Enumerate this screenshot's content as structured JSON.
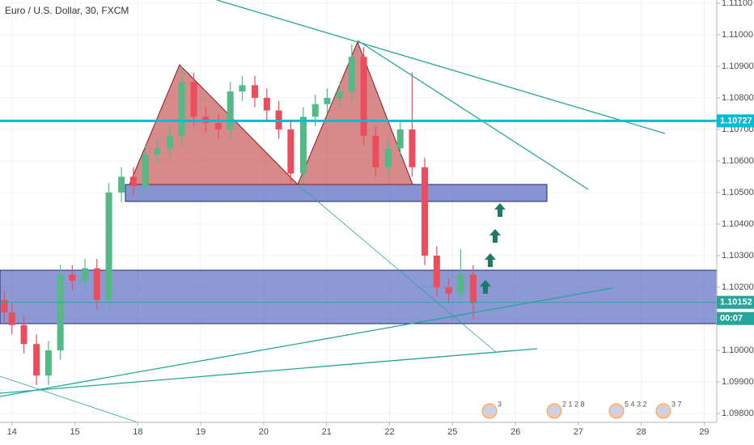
{
  "chart_data": {
    "type": "candlestick",
    "title": "Euro / U.S. Dollar, 30, FXCM",
    "x": [
      -0.12,
      0,
      0.19,
      0.39,
      0.58,
      0.77,
      0.96,
      1.16,
      1.35,
      1.54,
      1.74,
      1.93,
      2.12,
      2.31,
      2.51,
      2.7,
      2.89,
      3.08,
      3.28,
      3.47,
      3.66,
      3.86,
      4.05,
      4.24,
      4.43,
      4.63,
      4.82,
      5.01,
      5.21,
      5.4,
      5.59,
      5.78,
      5.98,
      6.17,
      6.36,
      6.56,
      6.75,
      6.94,
      7.13,
      7.33
    ],
    "open": [
      1.1016,
      1.1012,
      1.1008,
      1.1002,
      1.0992,
      1.1,
      1.1024,
      1.1022,
      1.1026,
      1.1016,
      1.105,
      1.1055,
      1.1052,
      1.1062,
      1.1064,
      1.1068,
      1.1085,
      1.1074,
      1.1072,
      1.107,
      1.1082,
      1.1084,
      1.108,
      1.1076,
      1.107,
      1.1056,
      1.1074,
      1.1078,
      1.108,
      1.1082,
      1.1093,
      1.1068,
      1.1058,
      1.1064,
      1.107,
      1.1058,
      1.103,
      1.102,
      1.1018,
      1.1024
    ],
    "high": [
      1.1019,
      1.1015,
      1.1011,
      1.1005,
      1.1003,
      1.1027,
      1.1027,
      1.1029,
      1.1029,
      1.1053,
      1.1058,
      1.1058,
      1.1065,
      1.1067,
      1.1071,
      1.109,
      1.1088,
      1.1077,
      1.1075,
      1.1085,
      1.1087,
      1.1087,
      1.1083,
      1.1079,
      1.1073,
      1.1077,
      1.1081,
      1.1083,
      1.1085,
      1.1097,
      1.1096,
      1.1071,
      1.1067,
      1.1073,
      1.1088,
      1.1061,
      1.1033,
      1.1023,
      1.1032,
      1.1027
    ],
    "low": [
      1.1009,
      1.1005,
      1.0999,
      1.0989,
      1.0989,
      1.0997,
      1.1019,
      1.1019,
      1.1013,
      1.1013,
      1.1047,
      1.1049,
      1.1049,
      1.1059,
      1.1061,
      1.1065,
      1.1071,
      1.1069,
      1.1067,
      1.1067,
      1.1079,
      1.1077,
      1.1073,
      1.1067,
      1.1053,
      1.1053,
      1.1071,
      1.1075,
      1.1077,
      1.1079,
      1.1065,
      1.1055,
      1.1055,
      1.1061,
      1.1055,
      1.1027,
      1.1017,
      1.1015,
      1.1015,
      1.101
    ],
    "close": [
      1.1012,
      1.1008,
      1.1002,
      1.0992,
      1.1,
      1.1024,
      1.1022,
      1.1026,
      1.1016,
      1.105,
      1.1055,
      1.1052,
      1.1062,
      1.1064,
      1.1068,
      1.1085,
      1.1074,
      1.1072,
      1.107,
      1.1082,
      1.1084,
      1.108,
      1.1076,
      1.107,
      1.1056,
      1.1074,
      1.1078,
      1.108,
      1.1082,
      1.1093,
      1.1068,
      1.1058,
      1.1064,
      1.107,
      1.1058,
      1.103,
      1.102,
      1.1018,
      1.1024,
      1.1015
    ],
    "up_color": "#53b987",
    "down_color": "#eb4d5c",
    "xlim": [
      -0.19,
      11.2
    ],
    "xticks": [
      {
        "value": 0,
        "label": "14"
      },
      {
        "value": 1,
        "label": "15"
      },
      {
        "value": 2,
        "label": "18"
      },
      {
        "value": 3,
        "label": "19"
      },
      {
        "value": 4,
        "label": "20"
      },
      {
        "value": 5,
        "label": "21"
      },
      {
        "value": 6,
        "label": "22"
      },
      {
        "value": 7,
        "label": "25"
      },
      {
        "value": 8,
        "label": "26"
      },
      {
        "value": 9,
        "label": "27"
      },
      {
        "value": 10,
        "label": "28"
      },
      {
        "value": 11,
        "label": "29"
      }
    ],
    "ylim": [
      1.097,
      1.1111
    ],
    "yticks": [
      {
        "value": 1.098,
        "label": "1.09800"
      },
      {
        "value": 1.099,
        "label": "1.09900"
      },
      {
        "value": 1.1,
        "label": "1.10000"
      },
      {
        "value": 1.101,
        "label": "1.10100"
      },
      {
        "value": 1.102,
        "label": "1.10200"
      },
      {
        "value": 1.103,
        "label": "1.10300"
      },
      {
        "value": 1.104,
        "label": "1.10400"
      },
      {
        "value": 1.105,
        "label": "1.10500"
      },
      {
        "value": 1.106,
        "label": "1.10600"
      },
      {
        "value": 1.107,
        "label": "1.10700"
      },
      {
        "value": 1.108,
        "label": "1.10800"
      },
      {
        "value": 1.109,
        "label": "1.10900"
      },
      {
        "value": 1.11,
        "label": "1.11000"
      },
      {
        "value": 1.111,
        "label": "1.11100"
      }
    ],
    "grid": true,
    "horizontal_line": {
      "value": 1.10727,
      "label": "1.10727",
      "color": "#00bcd4"
    },
    "last_price": {
      "value": 1.10152,
      "label": "1.10152",
      "color": "#26a69a"
    },
    "countdown": "00:07",
    "events": [
      "3",
      "2 1 2 8",
      "5 4 3 2",
      "3 7"
    ]
  }
}
